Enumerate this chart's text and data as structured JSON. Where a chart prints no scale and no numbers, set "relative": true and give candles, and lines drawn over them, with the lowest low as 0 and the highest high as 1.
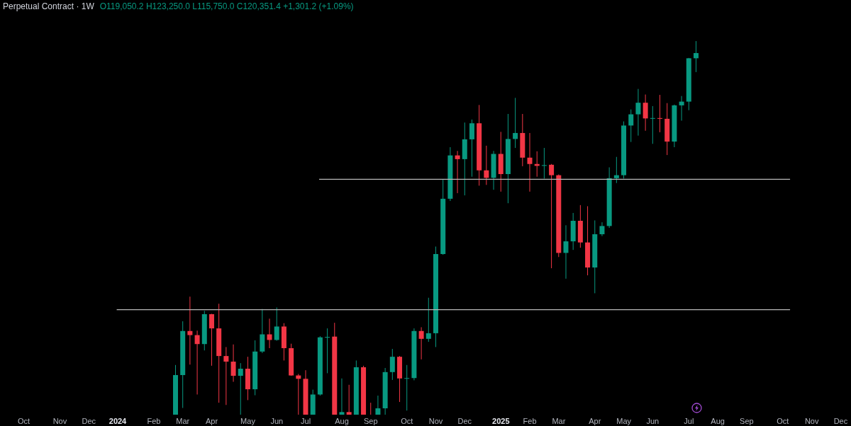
{
  "chart_data": {
    "type": "candlestick",
    "title": "Perpetual Contract · 1W",
    "subtitle": "O119,050.2 H123,250.0 L115,750.0 C120,351.4 +1,301.2 (+1.09%)",
    "relative": true,
    "x": [
      "2024-02-26",
      "2024-03-04",
      "2024-03-11",
      "2024-03-18",
      "2024-03-25",
      "2024-04-01",
      "2024-04-08",
      "2024-04-15",
      "2024-04-22",
      "2024-04-29",
      "2024-05-06",
      "2024-05-13",
      "2024-05-20",
      "2024-05-27",
      "2024-06-03",
      "2024-06-10",
      "2024-06-17",
      "2024-06-24",
      "2024-07-01",
      "2024-07-08",
      "2024-07-15",
      "2024-07-22",
      "2024-07-29",
      "2024-08-05",
      "2024-08-12",
      "2024-08-19",
      "2024-08-26",
      "2024-09-02",
      "2024-09-09",
      "2024-09-16",
      "2024-09-23",
      "2024-09-30",
      "2024-10-07",
      "2024-10-14",
      "2024-10-21",
      "2024-10-28",
      "2024-11-04",
      "2024-11-11",
      "2024-11-18",
      "2024-11-25",
      "2024-12-02",
      "2024-12-09",
      "2024-12-16",
      "2024-12-23",
      "2024-12-30",
      "2025-01-06",
      "2025-01-13",
      "2025-01-20",
      "2025-01-27",
      "2025-02-03",
      "2025-02-10",
      "2025-02-17",
      "2025-02-24",
      "2025-03-03",
      "2025-03-10",
      "2025-03-17",
      "2025-03-24",
      "2025-03-31",
      "2025-04-07",
      "2025-04-14",
      "2025-04-21",
      "2025-04-28",
      "2025-05-05",
      "2025-05-12",
      "2025-05-19",
      "2025-05-26",
      "2025-06-02",
      "2025-06-09",
      "2025-06-16",
      "2025-06-23",
      "2025-06-30",
      "2025-07-07",
      "2025-07-14"
    ],
    "ohlc": [
      [
        0,
        0.133,
        0,
        0.106
      ],
      [
        0.106,
        0.25,
        0.018,
        0.224
      ],
      [
        0.224,
        0.316,
        0.134,
        0.213
      ],
      [
        0.213,
        0.225,
        0.054,
        0.189
      ],
      [
        0.189,
        0.278,
        0.172,
        0.269
      ],
      [
        0.269,
        0.27,
        0.131,
        0.231
      ],
      [
        0.231,
        0.297,
        0.032,
        0.157
      ],
      [
        0.157,
        0.181,
        0.026,
        0.142
      ],
      [
        0.142,
        0.188,
        0.088,
        0.104
      ],
      [
        0.104,
        0.138,
        0,
        0.123
      ],
      [
        0.123,
        0.155,
        0.039,
        0.068
      ],
      [
        0.068,
        0.199,
        0.052,
        0.169
      ],
      [
        0.169,
        0.283,
        0.165,
        0.215
      ],
      [
        0.215,
        0.257,
        0.178,
        0.2
      ],
      [
        0.2,
        0.287,
        0.198,
        0.236
      ],
      [
        0.236,
        0.245,
        0.145,
        0.178
      ],
      [
        0.178,
        0.19,
        0.104,
        0.105
      ],
      [
        0.105,
        0.109,
        0,
        0.096
      ],
      [
        0.096,
        0.119,
        0,
        0
      ],
      [
        0,
        0.067,
        0,
        0.054
      ],
      [
        0.054,
        0.21,
        0.051,
        0.207
      ],
      [
        0.207,
        0.231,
        0.111,
        0.208
      ],
      [
        0.209,
        0.246,
        0,
        0
      ],
      [
        0,
        0.097,
        0,
        0.007
      ],
      [
        0.007,
        0.08,
        0,
        0
      ],
      [
        0,
        0.145,
        0,
        0.127
      ],
      [
        0.127,
        0.131,
        0,
        0
      ],
      [
        0,
        0.032,
        0,
        0
      ],
      [
        0,
        0.051,
        0,
        0.017
      ],
      [
        0.017,
        0.125,
        0,
        0.114
      ],
      [
        0.114,
        0.176,
        0.093,
        0.155
      ],
      [
        0.155,
        0.157,
        0.034,
        0.097
      ],
      [
        0.097,
        0.133,
        0.011,
        0.098
      ],
      [
        0.098,
        0.231,
        0.092,
        0.224
      ],
      [
        0.224,
        0.234,
        0.148,
        0.203
      ],
      [
        0.203,
        0.313,
        0.195,
        0.218
      ],
      [
        0.218,
        0.45,
        0.181,
        0.43
      ],
      [
        0.43,
        0.629,
        0.428,
        0.578
      ],
      [
        0.578,
        0.716,
        0.572,
        0.694
      ],
      [
        0.694,
        0.706,
        0.593,
        0.684
      ],
      [
        0.684,
        0.782,
        0.587,
        0.737
      ],
      [
        0.737,
        0.79,
        0.637,
        0.78
      ],
      [
        0.78,
        0.829,
        0.613,
        0.654
      ],
      [
        0.654,
        0.72,
        0.615,
        0.634
      ],
      [
        0.634,
        0.706,
        0.602,
        0.698
      ],
      [
        0.698,
        0.757,
        0.597,
        0.644
      ],
      [
        0.644,
        0.805,
        0.566,
        0.738
      ],
      [
        0.738,
        0.848,
        0.714,
        0.754
      ],
      [
        0.754,
        0.805,
        0.665,
        0.688
      ],
      [
        0.688,
        0.754,
        0.597,
        0.671
      ],
      [
        0.671,
        0.705,
        0.637,
        0.666
      ],
      [
        0.666,
        0.714,
        0.632,
        0.668
      ],
      [
        0.669,
        0.671,
        0.392,
        0.641
      ],
      [
        0.641,
        0.643,
        0.422,
        0.433
      ],
      [
        0.433,
        0.507,
        0.364,
        0.464
      ],
      [
        0.464,
        0.54,
        0.441,
        0.519
      ],
      [
        0.519,
        0.561,
        0.447,
        0.461
      ],
      [
        0.461,
        0.558,
        0.373,
        0.394
      ],
      [
        0.394,
        0.52,
        0.325,
        0.483
      ],
      [
        0.483,
        0.515,
        0.478,
        0.505
      ],
      [
        0.505,
        0.662,
        0.5,
        0.633
      ],
      [
        0.633,
        0.69,
        0.62,
        0.641
      ],
      [
        0.641,
        0.785,
        0.632,
        0.774
      ],
      [
        0.774,
        0.817,
        0.73,
        0.804
      ],
      [
        0.804,
        0.872,
        0.747,
        0.835
      ],
      [
        0.835,
        0.857,
        0.76,
        0.793
      ],
      [
        0.793,
        0.826,
        0.725,
        0.794
      ],
      [
        0.794,
        0.856,
        0.756,
        0.792
      ],
      [
        0.792,
        0.834,
        0.695,
        0.731
      ],
      [
        0.731,
        0.83,
        0.716,
        0.828
      ],
      [
        0.828,
        0.853,
        0.787,
        0.838
      ],
      [
        0.838,
        0.955,
        0.815,
        0.954
      ],
      [
        0.954,
        1,
        0.917,
        0.968
      ]
    ],
    "colors": [
      "#089981",
      "#089981",
      "#f23645",
      "#f23645",
      "#089981",
      "#f23645",
      "#f23645",
      "#f23645",
      "#f23645",
      "#089981",
      "#f23645",
      "#089981",
      "#089981",
      "#f23645",
      "#089981",
      "#f23645",
      "#f23645",
      "#f23645",
      "#f23645",
      "#089981",
      "#089981",
      "#089981",
      "#f23645",
      "#089981",
      "#f23645",
      "#089981",
      "#f23645",
      "#f23645",
      "#089981",
      "#089981",
      "#089981",
      "#f23645",
      "#089981",
      "#089981",
      "#f23645",
      "#089981",
      "#089981",
      "#089981",
      "#089981",
      "#f23645",
      "#089981",
      "#089981",
      "#f23645",
      "#f23645",
      "#089981",
      "#f23645",
      "#089981",
      "#089981",
      "#f23645",
      "#f23645",
      "#f23645",
      "#089981",
      "#f23645",
      "#f23645",
      "#089981",
      "#089981",
      "#f23645",
      "#f23645",
      "#089981",
      "#089981",
      "#089981",
      "#089981",
      "#089981",
      "#089981",
      "#089981",
      "#f23645",
      "#089981",
      "#f23645",
      "#f23645",
      "#089981",
      "#089981",
      "#089981",
      "#089981"
    ],
    "series": [
      {
        "type": "line",
        "color": "#b8b8b8",
        "x": [
          "2023-12-31",
          "2025-10-13"
        ],
        "values": [
          0.281,
          0.281
        ]
      },
      {
        "type": "line",
        "color": "#b8b8b8",
        "x": [
          "2024-07-14",
          "2025-10-13"
        ],
        "values": [
          0.63,
          0.63
        ]
      }
    ],
    "xlim": [
      "2023-09-09",
      "2025-12-11"
    ],
    "xticks": [
      {
        "value": "2023-10-02",
        "label": "Oct"
      },
      {
        "value": "2023-11-06",
        "label": "Nov"
      },
      {
        "value": "2023-12-04",
        "label": "Dec"
      },
      {
        "value": "2024-01-01",
        "label": "2024"
      },
      {
        "value": "2024-02-05",
        "label": "Feb"
      },
      {
        "value": "2024-03-04",
        "label": "Mar"
      },
      {
        "value": "2024-04-01",
        "label": "Apr"
      },
      {
        "value": "2024-05-06",
        "label": "May"
      },
      {
        "value": "2024-06-03",
        "label": "Jun"
      },
      {
        "value": "2024-07-01",
        "label": "Jul"
      },
      {
        "value": "2024-08-05",
        "label": "Aug"
      },
      {
        "value": "2024-09-02",
        "label": "Sep"
      },
      {
        "value": "2024-10-07",
        "label": "Oct"
      },
      {
        "value": "2024-11-04",
        "label": "Nov"
      },
      {
        "value": "2024-12-02",
        "label": "Dec"
      },
      {
        "value": "2025-01-06",
        "label": "2025"
      },
      {
        "value": "2025-02-03",
        "label": "Feb"
      },
      {
        "value": "2025-03-03",
        "label": "Mar"
      },
      {
        "value": "2025-04-07",
        "label": "Apr"
      },
      {
        "value": "2025-05-05",
        "label": "May"
      },
      {
        "value": "2025-06-02",
        "label": "Jun"
      },
      {
        "value": "2025-07-07",
        "label": "Jul"
      },
      {
        "value": "2025-08-04",
        "label": "Aug"
      },
      {
        "value": "2025-09-01",
        "label": "Sep"
      },
      {
        "value": "2025-10-06",
        "label": "Oct"
      },
      {
        "value": "2025-11-03",
        "label": "Nov"
      },
      {
        "value": "2025-12-01",
        "label": "Dec"
      }
    ]
  }
}
